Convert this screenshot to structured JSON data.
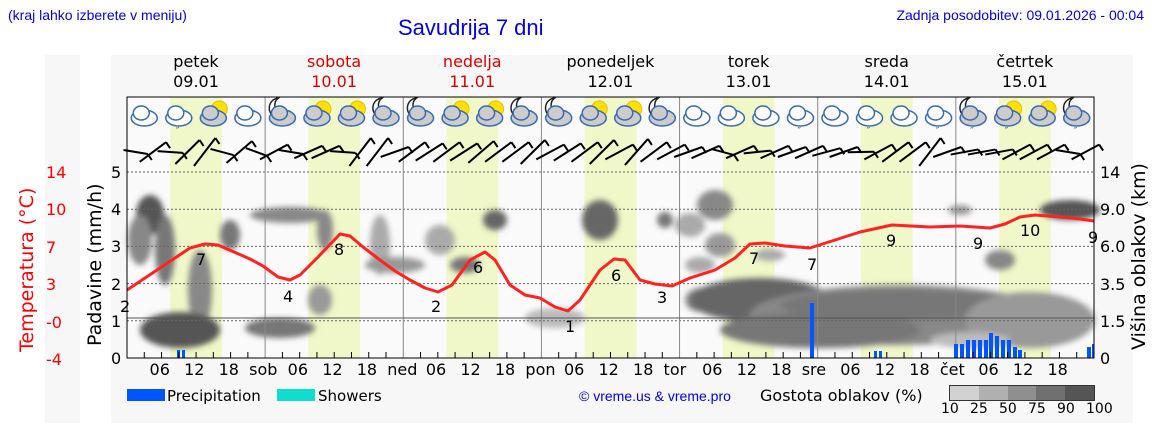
{
  "header": {
    "menu_hint": "(kraj lahko izberete v meniju)",
    "title": "Savudrija 7 dni",
    "last_update": "Zadnja posodobitev: 09.01.2026 - 00:04"
  },
  "days": [
    {
      "name": "petek",
      "date": "09.01",
      "weekend": false
    },
    {
      "name": "sobota",
      "date": "10.01",
      "weekend": true
    },
    {
      "name": "nedelja",
      "date": "11.01",
      "weekend": true
    },
    {
      "name": "ponedeljek",
      "date": "12.01",
      "weekend": false
    },
    {
      "name": "torek",
      "date": "13.01",
      "weekend": false
    },
    {
      "name": "sreda",
      "date": "14.01",
      "weekend": false
    },
    {
      "name": "četrtek",
      "date": "15.01",
      "weekend": false
    }
  ],
  "axes": {
    "temp_title": "Temperatura (°C)",
    "precip_title": "Padavine (mm/h)",
    "cloud_title": "Višina oblakov (km)",
    "temp_ticks": [
      "14",
      "10",
      "7",
      "3",
      "-0",
      "-4"
    ],
    "precip_ticks": [
      "5",
      "4",
      "3",
      "2",
      "1",
      "0"
    ],
    "cloud_ticks": [
      "14",
      "9.0",
      "6.0",
      "3.5",
      "1.5",
      "0"
    ],
    "x_ticks": [
      "06",
      "12",
      "18",
      "sob",
      "06",
      "12",
      "18",
      "ned",
      "06",
      "12",
      "18",
      "pon",
      "06",
      "12",
      "18",
      "tor",
      "06",
      "12",
      "18",
      "sre",
      "06",
      "12",
      "18",
      "čet",
      "06",
      "12",
      "18"
    ]
  },
  "legend": {
    "precipitation": "Precipitation",
    "showers": "Showers",
    "precip_color": "#0055ff",
    "showers_color": "#11ddcc",
    "copyright": "© vreme.us & vreme.pro",
    "cloud_density_title": "Gostota oblakov (%)",
    "cloud_scale": [
      "10",
      "25",
      "50",
      "75",
      "90",
      "100"
    ],
    "cloud_scale_colors": [
      "#d2d2d2",
      "#b0b0b0",
      "#8f8f8f",
      "#707070",
      "#555555"
    ]
  },
  "chart_data": {
    "type": "line",
    "title": "Savudrija 7 dni",
    "xlabel": "",
    "ylabel": "Temperatura (°C) / Padavine (mm/h)",
    "y2label": "Višina oblakov (km)",
    "x": [
      "09.01 00",
      "09.01 12",
      "09.01 18",
      "10.01 06",
      "10.01 12",
      "11.01 03",
      "11.01 12",
      "12.01 04",
      "12.01 12",
      "12.01 18",
      "13.01 06",
      "13.01 18",
      "14.01 06",
      "14.01 18",
      "15.01 06",
      "15.01 18",
      "16.01 00"
    ],
    "series": [
      {
        "name": "Temperatura",
        "unit": "°C",
        "color": "#ff0000",
        "labels": [
          {
            "x": "09.01 00",
            "value": 2
          },
          {
            "x": "09.01 12",
            "value": 7
          },
          {
            "x": "10.01 03",
            "value": 4
          },
          {
            "x": "10.01 12",
            "value": 8
          },
          {
            "x": "11.01 03",
            "value": 2
          },
          {
            "x": "11.01 12",
            "value": 6
          },
          {
            "x": "12.01 03",
            "value": 1
          },
          {
            "x": "12.01 12",
            "value": 6
          },
          {
            "x": "12.01 18",
            "value": 3
          },
          {
            "x": "13.01 12",
            "value": 7
          },
          {
            "x": "14.01 00",
            "value": 7
          },
          {
            "x": "14.01 12",
            "value": 9
          },
          {
            "x": "15.01 00",
            "value": 9
          },
          {
            "x": "15.01 12",
            "value": 10
          },
          {
            "x": "16.01 00",
            "value": 9
          }
        ]
      },
      {
        "name": "Precipitation",
        "unit": "mm/h",
        "color": "#0055ff",
        "bars": [
          {
            "x": "09.01 09",
            "value": 0.2
          },
          {
            "x": "13.01 23",
            "value": 1.5
          },
          {
            "x": "14.01 09",
            "value": 0.2
          },
          {
            "x": "15.01 00-10",
            "value": 0.4
          },
          {
            "x": "15.01 05",
            "value": 0.6
          },
          {
            "x": "15.01 23",
            "value": 0.3
          }
        ]
      }
    ],
    "ylim": [
      0,
      5
    ],
    "temp_range": [
      -4,
      14
    ],
    "grid": true,
    "legend_position": "bottom"
  }
}
